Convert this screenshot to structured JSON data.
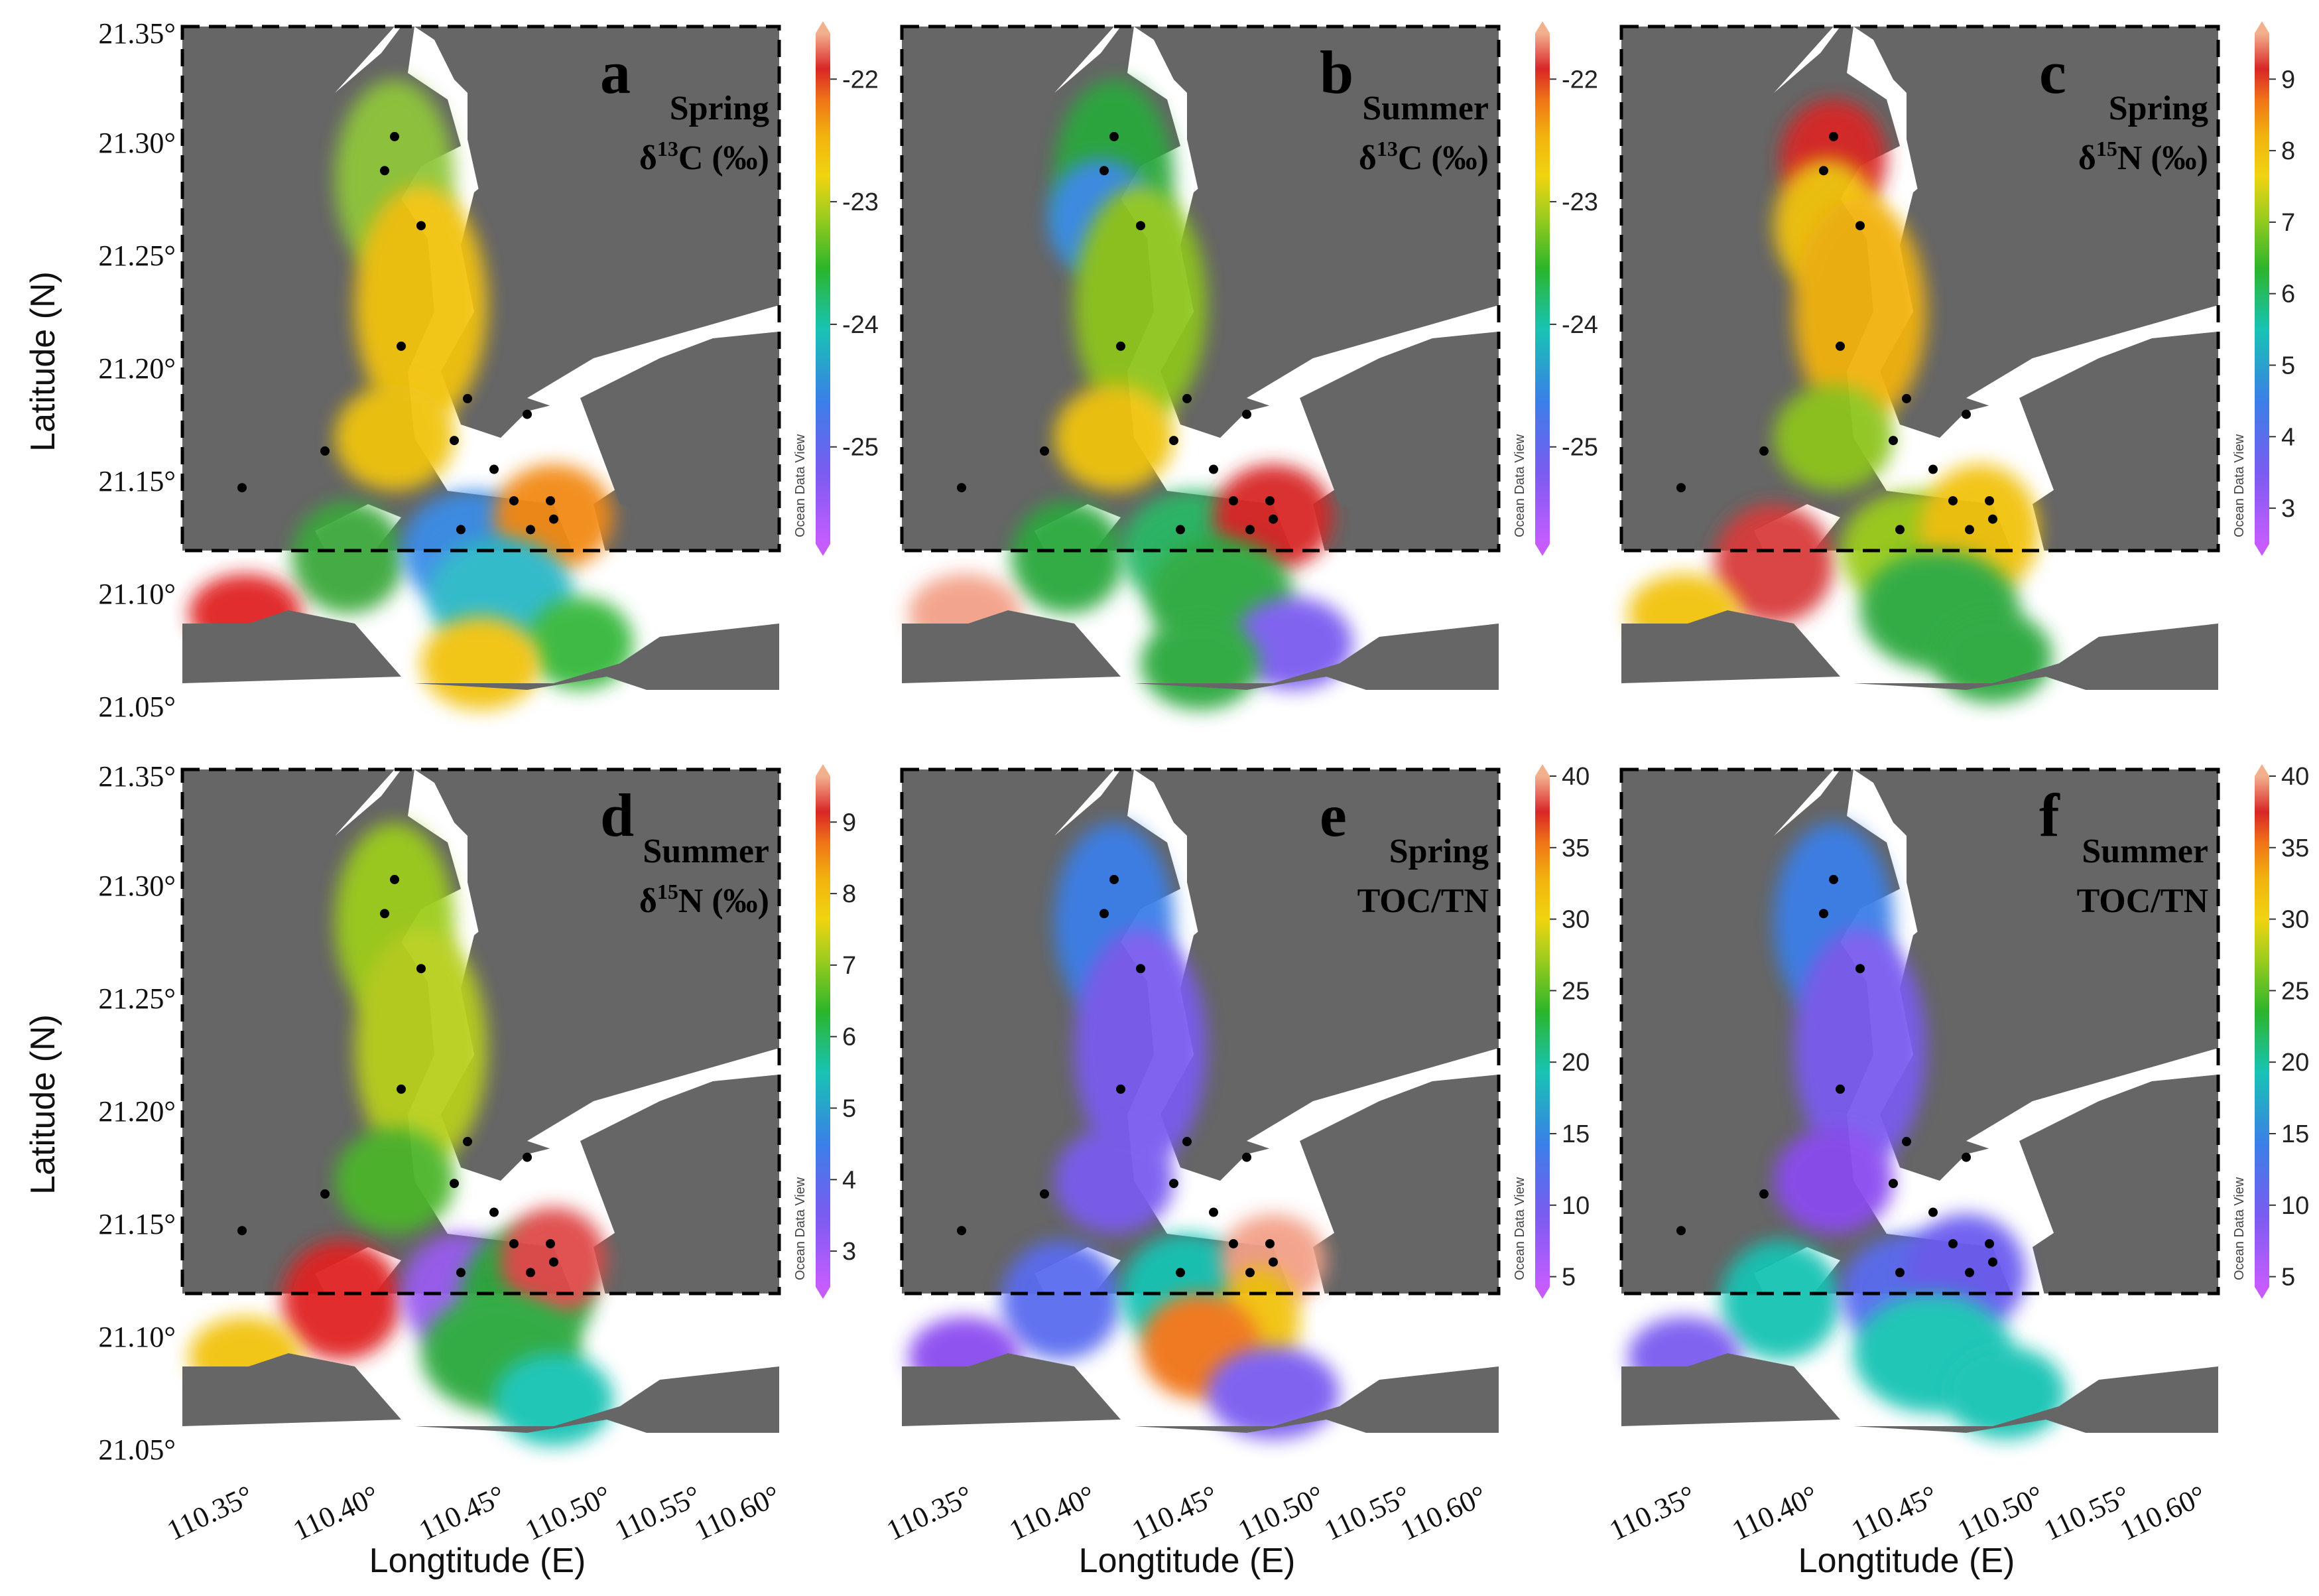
{
  "axes": {
    "y_title": "Latitude (N)",
    "x_title": "Longtitude (E)",
    "lat_ticks": [
      "21.35°",
      "21.30°",
      "21.25°",
      "21.20°",
      "21.15°",
      "21.10°",
      "21.05°"
    ],
    "lon_ticks": [
      "110.35°",
      "110.40°",
      "110.45°",
      "110.50°",
      "110.55°",
      "110.60°"
    ]
  },
  "watermark": "Ocean Data View",
  "colors": {
    "land": "#666666",
    "water": "#ffffff",
    "station": "#000000"
  },
  "colorbars": {
    "d13C": {
      "ticks": [
        "-22",
        "-23",
        "-24",
        "-25"
      ]
    },
    "d15N": {
      "ticks": [
        "9",
        "8",
        "7",
        "6",
        "5",
        "4",
        "3"
      ]
    },
    "toc": {
      "ticks": [
        "40",
        "35",
        "30",
        "25",
        "20",
        "15",
        "10",
        "5"
      ]
    }
  },
  "panels": [
    {
      "letter": "a",
      "season": "Spring",
      "param_pre": "δ",
      "param_sup": "13",
      "param_post": "C (‰)",
      "scale": "d13C"
    },
    {
      "letter": "b",
      "season": "Summer",
      "param_pre": "δ",
      "param_sup": "13",
      "param_post": "C (‰)",
      "scale": "d13C"
    },
    {
      "letter": "c",
      "season": "Spring",
      "param_pre": "δ",
      "param_sup": "15",
      "param_post": "N (‰)",
      "scale": "d15N"
    },
    {
      "letter": "d",
      "season": "Summer",
      "param_pre": "δ",
      "param_sup": "15",
      "param_post": "N (‰)",
      "scale": "d15N"
    },
    {
      "letter": "e",
      "season": "Spring",
      "param_pre": "",
      "param_sup": "",
      "param_post": "TOC/TN",
      "scale": "toc"
    },
    {
      "letter": "f",
      "season": "Summer",
      "param_pre": "",
      "param_sup": "",
      "param_post": "TOC/TN",
      "scale": "toc"
    }
  ]
}
